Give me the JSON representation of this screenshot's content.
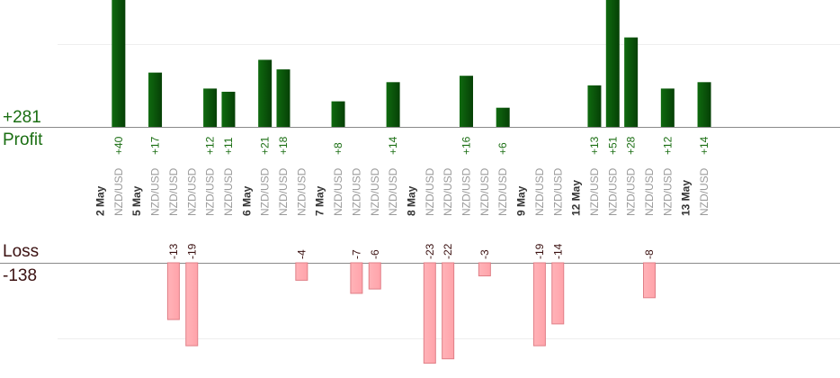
{
  "summary": {
    "profit_total": "+281",
    "profit_label": "Profit",
    "loss_label": "Loss",
    "loss_total": "-138"
  },
  "colors": {
    "profit_bar": "#0f6a0f",
    "profit_bar_edge": "#064006",
    "profit_text": "#1a6e12",
    "loss_bar": "#ffb3b8",
    "loss_bar_edge": "#e07f87",
    "loss_text": "#3a1010",
    "date_text": "#333333",
    "pair_text": "#9a9a9a"
  },
  "chart_data": {
    "type": "bar",
    "description_of_values": "profit (positive) and loss (negative) per trade",
    "ylim": [
      -25,
      55
    ],
    "grid": true,
    "columns": [
      {
        "kind": "date",
        "label": "2 May"
      },
      {
        "kind": "trade",
        "pair": "NZD/USD",
        "value": 40
      },
      {
        "kind": "date",
        "label": "5 May"
      },
      {
        "kind": "trade",
        "pair": "NZD/USD",
        "value": 17
      },
      {
        "kind": "trade",
        "pair": "NZD/USD",
        "value": -13
      },
      {
        "kind": "trade",
        "pair": "NZD/USD",
        "value": -19
      },
      {
        "kind": "trade",
        "pair": "NZD/USD",
        "value": 12
      },
      {
        "kind": "trade",
        "pair": "NZD/USD",
        "value": 11
      },
      {
        "kind": "date",
        "label": "6 May"
      },
      {
        "kind": "trade",
        "pair": "NZD/USD",
        "value": 21
      },
      {
        "kind": "trade",
        "pair": "NZD/USD",
        "value": 18
      },
      {
        "kind": "trade",
        "pair": "NZD/USD",
        "value": -4
      },
      {
        "kind": "date",
        "label": "7 May"
      },
      {
        "kind": "trade",
        "pair": "NZD/USD",
        "value": 8
      },
      {
        "kind": "trade",
        "pair": "NZD/USD",
        "value": -7
      },
      {
        "kind": "trade",
        "pair": "NZD/USD",
        "value": -6
      },
      {
        "kind": "trade",
        "pair": "NZD/USD",
        "value": 14
      },
      {
        "kind": "date",
        "label": "8 May"
      },
      {
        "kind": "trade",
        "pair": "NZD/USD",
        "value": -23
      },
      {
        "kind": "trade",
        "pair": "NZD/USD",
        "value": -22
      },
      {
        "kind": "trade",
        "pair": "NZD/USD",
        "value": 16
      },
      {
        "kind": "trade",
        "pair": "NZD/USD",
        "value": -3
      },
      {
        "kind": "trade",
        "pair": "NZD/USD",
        "value": 6
      },
      {
        "kind": "date",
        "label": "9 May"
      },
      {
        "kind": "trade",
        "pair": "NZD/USD",
        "value": -19
      },
      {
        "kind": "trade",
        "pair": "NZD/USD",
        "value": -14
      },
      {
        "kind": "date",
        "label": "12 May"
      },
      {
        "kind": "trade",
        "pair": "NZD/USD",
        "value": 13
      },
      {
        "kind": "trade",
        "pair": "NZD/USD",
        "value": 51
      },
      {
        "kind": "trade",
        "pair": "NZD/USD",
        "value": 28
      },
      {
        "kind": "trade",
        "pair": "NZD/USD",
        "value": -8
      },
      {
        "kind": "trade",
        "pair": "NZD/USD",
        "value": 12
      },
      {
        "kind": "date",
        "label": "13 May"
      },
      {
        "kind": "trade",
        "pair": "NZD/USD",
        "value": 14
      }
    ]
  }
}
